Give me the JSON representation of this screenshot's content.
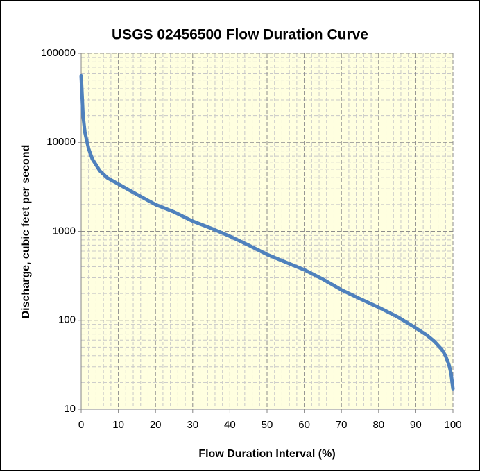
{
  "chart_data": {
    "type": "line",
    "title": "USGS 02456500 Flow Duration Curve",
    "x_label": "Flow Duration Interval (%)",
    "y_label": "Discharge, cubic feet per second",
    "x": [
      0,
      0.5,
      1,
      2,
      3,
      5,
      7,
      10,
      15,
      20,
      25,
      30,
      35,
      40,
      45,
      50,
      55,
      60,
      65,
      70,
      75,
      80,
      85,
      90,
      93,
      95,
      97,
      98,
      99,
      99.5,
      100
    ],
    "series": [
      {
        "name": "Discharge",
        "color": "#4f81bd",
        "values": [
          56000,
          20000,
          13000,
          8500,
          6500,
          4800,
          4000,
          3400,
          2600,
          2000,
          1650,
          1300,
          1080,
          880,
          700,
          550,
          450,
          370,
          290,
          220,
          175,
          140,
          110,
          82,
          68,
          58,
          47,
          40,
          31,
          25,
          17
        ]
      }
    ],
    "xlim": [
      0,
      100
    ],
    "xticks": [
      0,
      10,
      20,
      30,
      40,
      50,
      60,
      70,
      80,
      90,
      100
    ],
    "ylim": [
      10,
      100000
    ],
    "yticks": [
      10,
      100,
      1000,
      10000,
      100000
    ],
    "ylog": true,
    "grid": true,
    "minor_grid": true,
    "plot_background": "#ffffe0"
  }
}
